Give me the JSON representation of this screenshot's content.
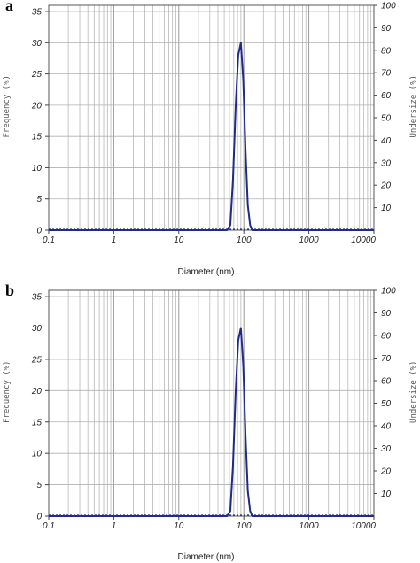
{
  "chart_data": [
    {
      "type": "line",
      "panel_label": "a",
      "xlabel": "Diameter (nm)",
      "ylabel_left": "Frequency (%)",
      "ylabel_right": "Undersize (%)",
      "x_scale": "log",
      "xlim": [
        0.1,
        10000
      ],
      "ylim_left": [
        0,
        36
      ],
      "ylim_right": [
        0,
        100
      ],
      "x_ticks": [
        "0.1",
        "1",
        "10",
        "100",
        "1000",
        "10000"
      ],
      "y_ticks_left": [
        "0",
        "5",
        "10",
        "15",
        "20",
        "25",
        "30",
        "35"
      ],
      "y_ticks_right": [
        "10",
        "20",
        "30",
        "40",
        "50",
        "60",
        "70",
        "80",
        "90",
        "100"
      ],
      "grid": true,
      "line_color": "#1f2a8a",
      "series": [
        {
          "x": [
            0.1,
            0.3,
            1,
            3,
            10,
            30,
            55,
            62,
            68,
            75,
            82,
            90,
            98,
            106,
            115,
            125,
            135,
            150,
            300,
            1000,
            10000
          ],
          "values": [
            0,
            0,
            0,
            0,
            0,
            0,
            0,
            0.8,
            8,
            20,
            28,
            30,
            24,
            13,
            4,
            0.8,
            0,
            0,
            0,
            0,
            0
          ]
        }
      ]
    },
    {
      "type": "line",
      "panel_label": "b",
      "xlabel": "Diameter (nm)",
      "ylabel_left": "Frequency (%)",
      "ylabel_right": "Undersize (%)",
      "x_scale": "log",
      "xlim": [
        0.1,
        10000
      ],
      "ylim_left": [
        0,
        36
      ],
      "ylim_right": [
        0,
        100
      ],
      "x_ticks": [
        "0.1",
        "1",
        "10",
        "100",
        "1000",
        "10000"
      ],
      "y_ticks_left": [
        "0",
        "5",
        "10",
        "15",
        "20",
        "25",
        "30",
        "35"
      ],
      "y_ticks_right": [
        "10",
        "20",
        "30",
        "40",
        "50",
        "60",
        "70",
        "80",
        "90",
        "100"
      ],
      "grid": true,
      "line_color": "#1f2a8a",
      "series": [
        {
          "x": [
            0.1,
            0.3,
            1,
            3,
            10,
            30,
            55,
            62,
            68,
            75,
            82,
            90,
            98,
            106,
            115,
            125,
            135,
            150,
            300,
            1000,
            10000
          ],
          "values": [
            0,
            0,
            0,
            0,
            0,
            0,
            0,
            0.8,
            8,
            20,
            28,
            30,
            24,
            13,
            4,
            0.8,
            0,
            0,
            0,
            0,
            0
          ]
        }
      ]
    }
  ]
}
